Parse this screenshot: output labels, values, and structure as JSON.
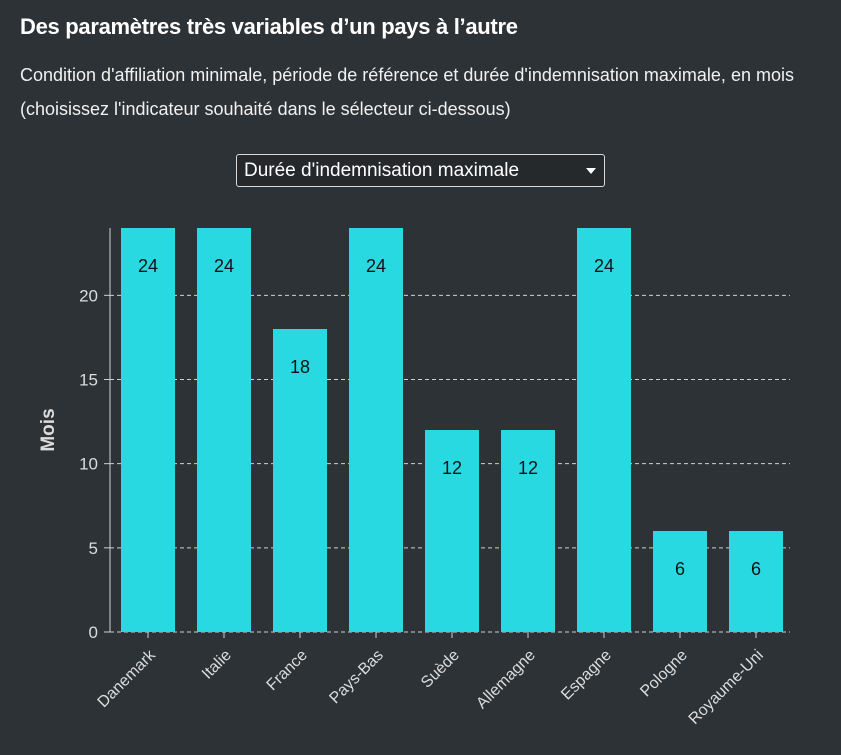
{
  "header": {
    "title": "Des paramètres très variables d’un pays à l’autre",
    "subtitle": "Condition d'affiliation minimale, période de référence et durée d'indemnisation maximale, en mois (choisissez l'indicateur souhaité dans le sélecteur ci-dessous)"
  },
  "selector": {
    "selected": "Durée d'indemnisation maximale"
  },
  "colors": {
    "background": "#2d3236",
    "bar": "#29d9e2",
    "text": "#ffffff",
    "grid": "#d0d0d0"
  },
  "chart_data": {
    "type": "bar",
    "categories": [
      "Danemark",
      "Italie",
      "France",
      "Pays-Bas",
      "Suède",
      "Allemagne",
      "Espagne",
      "Pologne",
      "Royaume-Uni"
    ],
    "values": [
      24,
      24,
      18,
      24,
      12,
      12,
      24,
      6,
      6
    ],
    "title": "",
    "xlabel": "",
    "ylabel": "Mois",
    "ylim": [
      0,
      24
    ],
    "yticks": [
      0,
      5,
      10,
      15,
      20
    ],
    "grid": true,
    "grid_style": "dashed-horizontal",
    "data_labels": true
  }
}
